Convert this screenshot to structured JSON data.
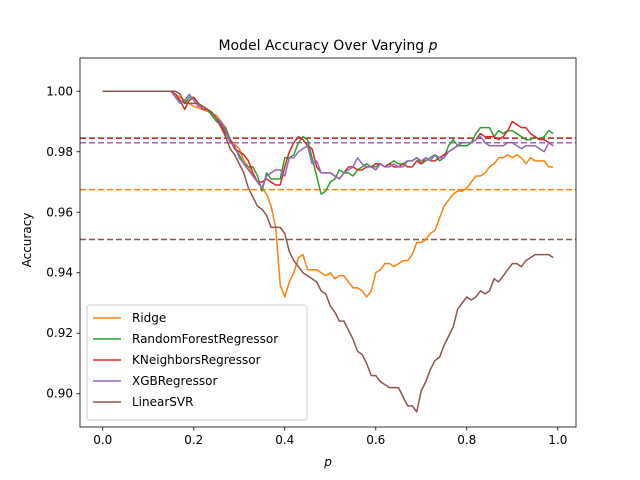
{
  "chart_data": {
    "type": "line",
    "title": "Model Accuracy Over Varying ",
    "title_var": "p",
    "xlabel": "p",
    "ylabel": "Accuracy",
    "xlim": [
      -0.05,
      1.04
    ],
    "ylim": [
      0.889,
      1.011
    ],
    "xticks": [
      0.0,
      0.2,
      0.4,
      0.6,
      0.8,
      1.0
    ],
    "xtick_labels": [
      "0.0",
      "0.2",
      "0.4",
      "0.6",
      "0.8",
      "1.0"
    ],
    "yticks": [
      0.9,
      0.92,
      0.94,
      0.96,
      0.98,
      1.0
    ],
    "ytick_labels": [
      "0.90",
      "0.92",
      "0.94",
      "0.96",
      "0.98",
      "1.00"
    ],
    "legend_position": "lower-left",
    "series": [
      {
        "name": "Ridge",
        "color": "#ff7f0e",
        "mean": 0.9675,
        "x": [
          0.0,
          0.05,
          0.1,
          0.15,
          0.18,
          0.2,
          0.22,
          0.25,
          0.27,
          0.28,
          0.3,
          0.31,
          0.32,
          0.33,
          0.34,
          0.35,
          0.36,
          0.37,
          0.38,
          0.39,
          0.4,
          0.41,
          0.42,
          0.43,
          0.44,
          0.45,
          0.46,
          0.47,
          0.48,
          0.49,
          0.5,
          0.51,
          0.52,
          0.53,
          0.54,
          0.55,
          0.56,
          0.57,
          0.58,
          0.59,
          0.6,
          0.61,
          0.62,
          0.63,
          0.64,
          0.65,
          0.66,
          0.67,
          0.68,
          0.69,
          0.7,
          0.71,
          0.72,
          0.73,
          0.74,
          0.75,
          0.76,
          0.77,
          0.78,
          0.79,
          0.8,
          0.81,
          0.82,
          0.83,
          0.84,
          0.85,
          0.86,
          0.87,
          0.88,
          0.89,
          0.9,
          0.91,
          0.92,
          0.93,
          0.94,
          0.95,
          0.96,
          0.97,
          0.98,
          0.99
        ],
        "y": [
          1.0,
          1.0,
          1.0,
          1.0,
          0.997,
          0.995,
          0.994,
          0.992,
          0.988,
          0.984,
          0.981,
          0.977,
          0.975,
          0.972,
          0.97,
          0.968,
          0.966,
          0.962,
          0.955,
          0.936,
          0.932,
          0.937,
          0.94,
          0.945,
          0.946,
          0.941,
          0.941,
          0.941,
          0.94,
          0.939,
          0.94,
          0.938,
          0.939,
          0.939,
          0.937,
          0.935,
          0.935,
          0.934,
          0.932,
          0.934,
          0.94,
          0.941,
          0.943,
          0.943,
          0.942,
          0.943,
          0.944,
          0.944,
          0.946,
          0.95,
          0.95,
          0.951,
          0.953,
          0.954,
          0.958,
          0.962,
          0.964,
          0.966,
          0.967,
          0.967,
          0.968,
          0.97,
          0.972,
          0.972,
          0.973,
          0.975,
          0.976,
          0.978,
          0.978,
          0.979,
          0.978,
          0.979,
          0.978,
          0.976,
          0.978,
          0.977,
          0.977,
          0.977,
          0.975,
          0.975
        ]
      },
      {
        "name": "RandomForestRegressor",
        "color": "#2ca02c",
        "mean": 0.9845,
        "x": [
          0.0,
          0.05,
          0.1,
          0.15,
          0.16,
          0.17,
          0.18,
          0.19,
          0.2,
          0.21,
          0.22,
          0.23,
          0.24,
          0.25,
          0.26,
          0.27,
          0.28,
          0.29,
          0.3,
          0.31,
          0.32,
          0.33,
          0.34,
          0.35,
          0.36,
          0.37,
          0.38,
          0.39,
          0.4,
          0.41,
          0.42,
          0.43,
          0.44,
          0.45,
          0.46,
          0.47,
          0.48,
          0.49,
          0.5,
          0.51,
          0.52,
          0.53,
          0.54,
          0.55,
          0.56,
          0.57,
          0.58,
          0.59,
          0.6,
          0.61,
          0.62,
          0.63,
          0.64,
          0.65,
          0.66,
          0.67,
          0.68,
          0.69,
          0.7,
          0.71,
          0.72,
          0.73,
          0.74,
          0.75,
          0.76,
          0.77,
          0.78,
          0.79,
          0.8,
          0.81,
          0.82,
          0.83,
          0.84,
          0.85,
          0.86,
          0.87,
          0.88,
          0.89,
          0.9,
          0.91,
          0.92,
          0.93,
          0.94,
          0.95,
          0.96,
          0.97,
          0.98,
          0.99
        ],
        "y": [
          1.0,
          1.0,
          1.0,
          1.0,
          0.998,
          0.997,
          0.996,
          0.998,
          0.998,
          0.996,
          0.995,
          0.994,
          0.992,
          0.99,
          0.989,
          0.988,
          0.984,
          0.981,
          0.979,
          0.976,
          0.975,
          0.975,
          0.972,
          0.967,
          0.973,
          0.971,
          0.971,
          0.971,
          0.978,
          0.978,
          0.979,
          0.983,
          0.985,
          0.984,
          0.978,
          0.972,
          0.966,
          0.967,
          0.97,
          0.971,
          0.974,
          0.973,
          0.973,
          0.972,
          0.974,
          0.975,
          0.976,
          0.975,
          0.975,
          0.976,
          0.975,
          0.976,
          0.977,
          0.976,
          0.976,
          0.977,
          0.977,
          0.978,
          0.976,
          0.977,
          0.978,
          0.979,
          0.977,
          0.978,
          0.982,
          0.984,
          0.982,
          0.982,
          0.982,
          0.983,
          0.986,
          0.988,
          0.988,
          0.988,
          0.985,
          0.987,
          0.986,
          0.987,
          0.987,
          0.986,
          0.985,
          0.984,
          0.984,
          0.985,
          0.984,
          0.985,
          0.987,
          0.986
        ]
      },
      {
        "name": "KNeighborsRegressor",
        "color": "#d62728",
        "mean": 0.9845,
        "x": [
          0.0,
          0.05,
          0.1,
          0.15,
          0.16,
          0.17,
          0.18,
          0.19,
          0.2,
          0.21,
          0.22,
          0.23,
          0.24,
          0.25,
          0.26,
          0.27,
          0.28,
          0.29,
          0.3,
          0.31,
          0.32,
          0.33,
          0.34,
          0.35,
          0.36,
          0.37,
          0.38,
          0.39,
          0.4,
          0.41,
          0.42,
          0.43,
          0.44,
          0.45,
          0.46,
          0.47,
          0.48,
          0.49,
          0.5,
          0.51,
          0.52,
          0.53,
          0.54,
          0.55,
          0.56,
          0.57,
          0.58,
          0.59,
          0.6,
          0.61,
          0.62,
          0.63,
          0.64,
          0.65,
          0.66,
          0.67,
          0.68,
          0.69,
          0.7,
          0.71,
          0.72,
          0.73,
          0.74,
          0.75,
          0.76,
          0.77,
          0.78,
          0.79,
          0.8,
          0.81,
          0.82,
          0.83,
          0.84,
          0.85,
          0.86,
          0.87,
          0.88,
          0.89,
          0.9,
          0.91,
          0.92,
          0.93,
          0.94,
          0.95,
          0.96,
          0.97,
          0.98,
          0.99
        ],
        "y": [
          1.0,
          1.0,
          1.0,
          1.0,
          0.999,
          0.997,
          0.994,
          0.997,
          0.998,
          0.996,
          0.994,
          0.994,
          0.993,
          0.991,
          0.989,
          0.986,
          0.984,
          0.981,
          0.98,
          0.979,
          0.977,
          0.973,
          0.97,
          0.97,
          0.971,
          0.97,
          0.969,
          0.969,
          0.975,
          0.98,
          0.983,
          0.985,
          0.984,
          0.982,
          0.981,
          0.975,
          0.973,
          0.973,
          0.973,
          0.972,
          0.971,
          0.973,
          0.975,
          0.975,
          0.974,
          0.974,
          0.975,
          0.975,
          0.976,
          0.976,
          0.975,
          0.976,
          0.975,
          0.975,
          0.976,
          0.975,
          0.975,
          0.977,
          0.976,
          0.978,
          0.977,
          0.977,
          0.978,
          0.979,
          0.98,
          0.981,
          0.982,
          0.983,
          0.983,
          0.983,
          0.984,
          0.986,
          0.985,
          0.985,
          0.985,
          0.984,
          0.985,
          0.987,
          0.99,
          0.989,
          0.988,
          0.988,
          0.986,
          0.985,
          0.984,
          0.984,
          0.983,
          0.982
        ]
      },
      {
        "name": "XGBRegressor",
        "color": "#9467bd",
        "mean": 0.983,
        "x": [
          0.0,
          0.05,
          0.1,
          0.15,
          0.16,
          0.17,
          0.18,
          0.19,
          0.2,
          0.21,
          0.22,
          0.23,
          0.24,
          0.25,
          0.26,
          0.27,
          0.28,
          0.29,
          0.3,
          0.31,
          0.32,
          0.33,
          0.34,
          0.35,
          0.36,
          0.37,
          0.38,
          0.39,
          0.4,
          0.41,
          0.42,
          0.43,
          0.44,
          0.45,
          0.46,
          0.47,
          0.48,
          0.49,
          0.5,
          0.51,
          0.52,
          0.53,
          0.54,
          0.55,
          0.56,
          0.57,
          0.58,
          0.59,
          0.6,
          0.61,
          0.62,
          0.63,
          0.64,
          0.65,
          0.66,
          0.67,
          0.68,
          0.69,
          0.7,
          0.71,
          0.72,
          0.73,
          0.74,
          0.75,
          0.76,
          0.77,
          0.78,
          0.79,
          0.8,
          0.81,
          0.82,
          0.83,
          0.84,
          0.85,
          0.86,
          0.87,
          0.88,
          0.89,
          0.9,
          0.91,
          0.92,
          0.93,
          0.94,
          0.95,
          0.96,
          0.97,
          0.98,
          0.99
        ],
        "y": [
          1.0,
          1.0,
          1.0,
          1.0,
          0.998,
          0.996,
          0.997,
          0.999,
          0.997,
          0.995,
          0.995,
          0.994,
          0.993,
          0.991,
          0.99,
          0.987,
          0.983,
          0.982,
          0.978,
          0.976,
          0.974,
          0.972,
          0.97,
          0.968,
          0.972,
          0.973,
          0.974,
          0.974,
          0.972,
          0.978,
          0.978,
          0.98,
          0.981,
          0.982,
          0.976,
          0.977,
          0.973,
          0.973,
          0.973,
          0.972,
          0.971,
          0.973,
          0.974,
          0.975,
          0.978,
          0.976,
          0.975,
          0.975,
          0.974,
          0.976,
          0.975,
          0.975,
          0.976,
          0.975,
          0.975,
          0.977,
          0.977,
          0.978,
          0.977,
          0.978,
          0.977,
          0.979,
          0.978,
          0.978,
          0.98,
          0.981,
          0.982,
          0.983,
          0.983,
          0.983,
          0.984,
          0.985,
          0.983,
          0.982,
          0.982,
          0.982,
          0.982,
          0.983,
          0.983,
          0.982,
          0.981,
          0.982,
          0.982,
          0.982,
          0.981,
          0.98,
          0.983,
          0.982
        ]
      },
      {
        "name": "LinearSVR",
        "color": "#8c564b",
        "mean": 0.951,
        "x": [
          0.0,
          0.05,
          0.1,
          0.15,
          0.16,
          0.17,
          0.18,
          0.19,
          0.2,
          0.21,
          0.22,
          0.23,
          0.24,
          0.25,
          0.26,
          0.27,
          0.28,
          0.29,
          0.3,
          0.31,
          0.32,
          0.33,
          0.34,
          0.35,
          0.36,
          0.37,
          0.38,
          0.39,
          0.4,
          0.41,
          0.42,
          0.43,
          0.44,
          0.45,
          0.46,
          0.47,
          0.48,
          0.49,
          0.5,
          0.51,
          0.52,
          0.53,
          0.54,
          0.55,
          0.56,
          0.57,
          0.58,
          0.59,
          0.6,
          0.61,
          0.62,
          0.63,
          0.64,
          0.65,
          0.66,
          0.67,
          0.68,
          0.69,
          0.7,
          0.71,
          0.72,
          0.73,
          0.74,
          0.75,
          0.76,
          0.77,
          0.78,
          0.79,
          0.8,
          0.81,
          0.82,
          0.83,
          0.84,
          0.85,
          0.86,
          0.87,
          0.88,
          0.89,
          0.9,
          0.91,
          0.92,
          0.93,
          0.94,
          0.95,
          0.96,
          0.97,
          0.98,
          0.99
        ],
        "y": [
          1.0,
          1.0,
          1.0,
          1.0,
          1.0,
          0.999,
          0.996,
          0.996,
          0.996,
          0.996,
          0.995,
          0.994,
          0.993,
          0.991,
          0.988,
          0.985,
          0.981,
          0.979,
          0.976,
          0.973,
          0.968,
          0.965,
          0.962,
          0.961,
          0.959,
          0.955,
          0.955,
          0.955,
          0.953,
          0.947,
          0.944,
          0.942,
          0.94,
          0.939,
          0.938,
          0.937,
          0.934,
          0.933,
          0.929,
          0.927,
          0.924,
          0.924,
          0.921,
          0.918,
          0.914,
          0.913,
          0.91,
          0.906,
          0.906,
          0.904,
          0.903,
          0.902,
          0.902,
          0.902,
          0.899,
          0.896,
          0.896,
          0.894,
          0.901,
          0.904,
          0.908,
          0.911,
          0.912,
          0.916,
          0.919,
          0.922,
          0.928,
          0.93,
          0.932,
          0.931,
          0.932,
          0.934,
          0.933,
          0.934,
          0.938,
          0.937,
          0.939,
          0.941,
          0.943,
          0.943,
          0.942,
          0.944,
          0.945,
          0.946,
          0.946,
          0.946,
          0.946,
          0.945
        ]
      }
    ]
  }
}
